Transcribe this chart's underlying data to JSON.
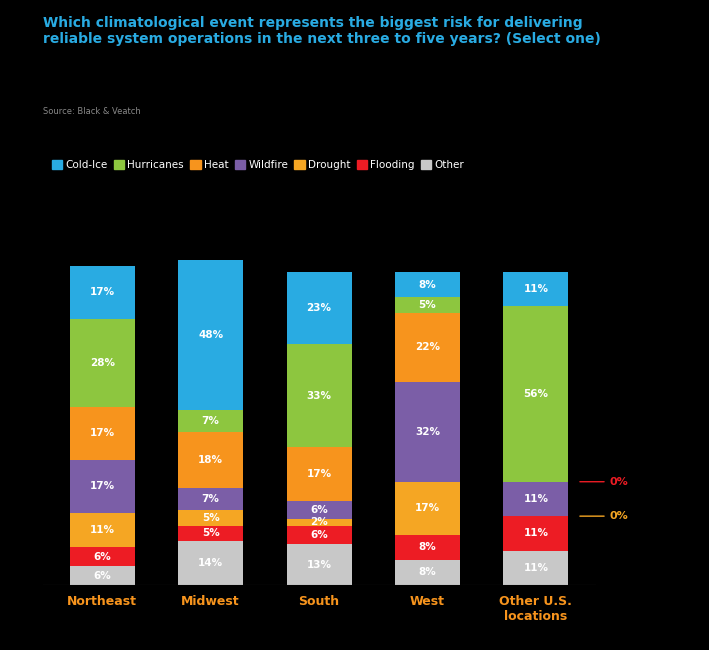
{
  "title": "Which climatological event represents the biggest risk for delivering\nreliable system operations in the next three to five years? (Select one)",
  "source": "Source: Black & Veatch",
  "categories": [
    "Northeast",
    "Midwest",
    "South",
    "West",
    "Other U.S.\nlocations"
  ],
  "legend_labels": [
    "Cold-Ice",
    "Hurricanes",
    "Heat",
    "Wildfire",
    "Drought",
    "Flooding",
    "Other"
  ],
  "colors": [
    "#29ABE2",
    "#8DC63F",
    "#F7941D",
    "#7B5EA7",
    "#F5A623",
    "#ED1C24",
    "#C8C8C8"
  ],
  "data": {
    "Cold-Ice": [
      17,
      48,
      23,
      8,
      11
    ],
    "Hurricanes": [
      28,
      7,
      33,
      5,
      56
    ],
    "Heat": [
      17,
      18,
      17,
      22,
      0
    ],
    "Wildfire": [
      17,
      7,
      6,
      32,
      11
    ],
    "Drought": [
      11,
      5,
      2,
      17,
      0
    ],
    "Flooding": [
      6,
      5,
      6,
      8,
      11
    ],
    "Other": [
      6,
      14,
      13,
      8,
      11
    ]
  },
  "bar_width": 0.6,
  "background_color": "#000000",
  "text_color": "#FFFFFF",
  "title_color": "#29ABE2",
  "source_color": "#888888",
  "xlabel_color": "#F7941D",
  "heat_ann_color": "#ED1C24",
  "drought_ann_color": "#F5A623",
  "figsize": [
    7.09,
    6.5
  ],
  "dpi": 100
}
